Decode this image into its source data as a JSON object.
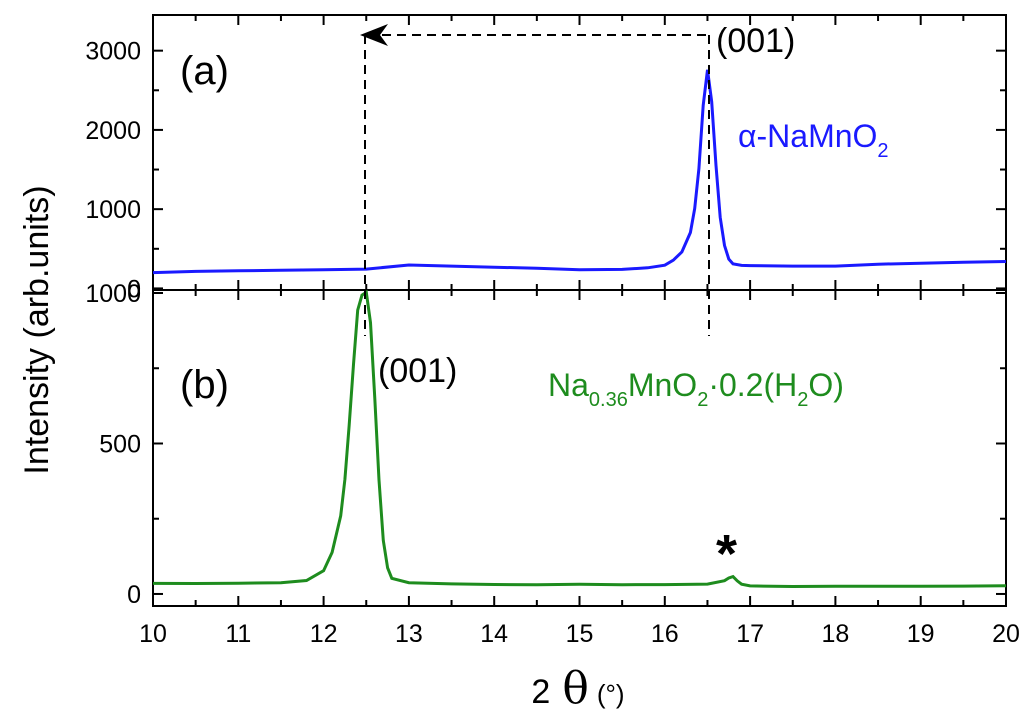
{
  "chart_data": {
    "type": "line",
    "xlabel": "2 θ (°)",
    "xlabel_prefix": "2",
    "xlabel_theta": "θ",
    "xlabel_unit": "(°)",
    "ylabel": "Intensity (arb.units)",
    "xlim": [
      10,
      20
    ],
    "x_ticks": [
      "10",
      "11",
      "12",
      "13",
      "14",
      "15",
      "16",
      "17",
      "18",
      "19",
      "20"
    ],
    "panels": [
      {
        "panel_label": "(a)",
        "ylim": [
          -20,
          3450
        ],
        "y_ticks": [
          "0",
          "1000",
          "2000",
          "3000"
        ],
        "color": "#1a1aff",
        "series_label_base": "α-NaMnO",
        "series_label_sub": "2",
        "peak_label": "(001)",
        "series": [
          {
            "name": "α-NaMnO2",
            "x": [
              10,
              10.5,
              11,
              11.5,
              12,
              12.5,
              13,
              13.5,
              14,
              14.5,
              15,
              15.5,
              15.8,
              16.0,
              16.1,
              16.2,
              16.3,
              16.35,
              16.4,
              16.45,
              16.5,
              16.55,
              16.6,
              16.65,
              16.7,
              16.75,
              16.8,
              16.9,
              17.0,
              17.5,
              18,
              18.5,
              19,
              19.5,
              20
            ],
            "y": [
              200,
              210,
              215,
              220,
              225,
              235,
              290,
              280,
              270,
              260,
              245,
              250,
              270,
              300,
              360,
              460,
              700,
              1000,
              1500,
              2300,
              2750,
              2350,
              1550,
              900,
              550,
              380,
              320,
              300,
              295,
              285,
              280,
              300,
              310,
              320,
              330
            ]
          }
        ]
      },
      {
        "panel_label": "(b)",
        "ylim": [
          -40,
          1010
        ],
        "y_ticks": [
          "0",
          "500",
          "1000"
        ],
        "color": "#1e8c1e",
        "series_label_parts": [
          "Na",
          "0.36",
          "MnO",
          "2",
          "·0.2(H",
          "2",
          "O)"
        ],
        "peak_label": "(001)",
        "annotation": "*",
        "series": [
          {
            "name": "Na0.36MnO2·0.2(H2O)",
            "x": [
              10,
              10.5,
              11,
              11.5,
              11.8,
              12.0,
              12.1,
              12.2,
              12.25,
              12.3,
              12.35,
              12.4,
              12.45,
              12.5,
              12.55,
              12.6,
              12.65,
              12.7,
              12.75,
              12.8,
              13.0,
              13.5,
              14,
              14.5,
              15,
              15.5,
              16,
              16.5,
              16.7,
              16.75,
              16.8,
              16.85,
              16.9,
              17.0,
              17.5,
              18,
              18.5,
              19,
              19.5,
              20
            ],
            "y": [
              35,
              36,
              38,
              40,
              48,
              80,
              140,
              260,
              380,
              560,
              760,
              940,
              990,
              1000,
              900,
              650,
              380,
              180,
              90,
              55,
              40,
              35,
              32,
              30,
              30,
              28,
              28,
              30,
              42,
              52,
              58,
              45,
              35,
              30,
              28,
              28,
              27,
              26,
              25,
              25
            ]
          }
        ]
      }
    ]
  }
}
